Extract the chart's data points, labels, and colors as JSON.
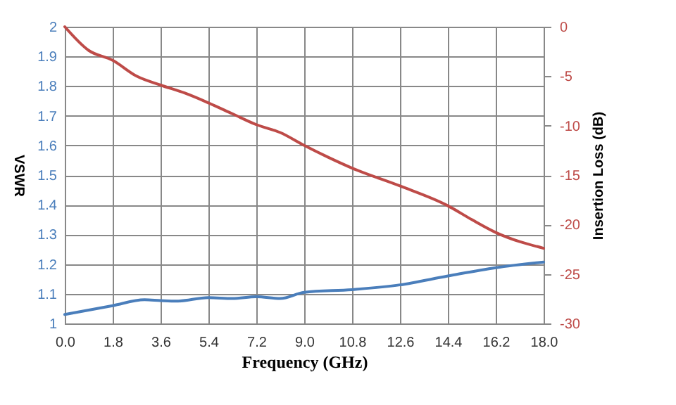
{
  "chart_data": {
    "type": "line",
    "xlabel": "Frequency (GHz)",
    "ylabel": "VSWR",
    "y2label": "Insertion Loss (dB)",
    "xlim": [
      0,
      18
    ],
    "xticks": [
      {
        "value": 0,
        "label": "0.0"
      },
      1.8,
      3.6,
      5.4,
      7.2,
      {
        "value": 9,
        "label": "9.0"
      },
      10.8,
      12.6,
      14.4,
      16.2,
      {
        "value": 18,
        "label": "18.0"
      }
    ],
    "ylim": [
      1,
      2
    ],
    "yticks": [
      1,
      1.1,
      1.2,
      1.3,
      1.4,
      1.5,
      1.6,
      1.7,
      1.8,
      1.9,
      2
    ],
    "y2lim": [
      -30,
      0
    ],
    "y2ticks": [
      -30,
      -25,
      -20,
      -15,
      -10,
      -5,
      0
    ],
    "grid": true,
    "marker": "none",
    "line_style": "solid",
    "series": [
      {
        "color": "#4a7ebb",
        "x": [
          0,
          1.8,
          3,
          3.6,
          4.2,
          5.4,
          6.3,
          7.2,
          8.1,
          9,
          10.8,
          12.6,
          14.4,
          16.2,
          18
        ],
        "values": [
          1.03,
          1.06,
          1.08,
          1.077,
          1.075,
          1.087,
          1.084,
          1.09,
          1.084,
          1.105,
          1.114,
          1.13,
          1.16,
          1.188,
          1.207
        ]
      },
      {
        "color": "#be4b48",
        "axis": "y2",
        "x": [
          0,
          0.9,
          1.8,
          2.7,
          3.6,
          4.5,
          5.4,
          6.3,
          7.2,
          8.1,
          9,
          9.9,
          10.8,
          12.6,
          14.4,
          15.3,
          16.2,
          18
        ],
        "values": [
          0,
          -2.4,
          -3.4,
          -5,
          -5.9,
          -6.7,
          -7.7,
          -8.8,
          -9.9,
          -10.7,
          -12,
          -13.2,
          -14.3,
          -16.1,
          -18.1,
          -19.5,
          -20.8,
          -22.4
        ]
      }
    ]
  }
}
